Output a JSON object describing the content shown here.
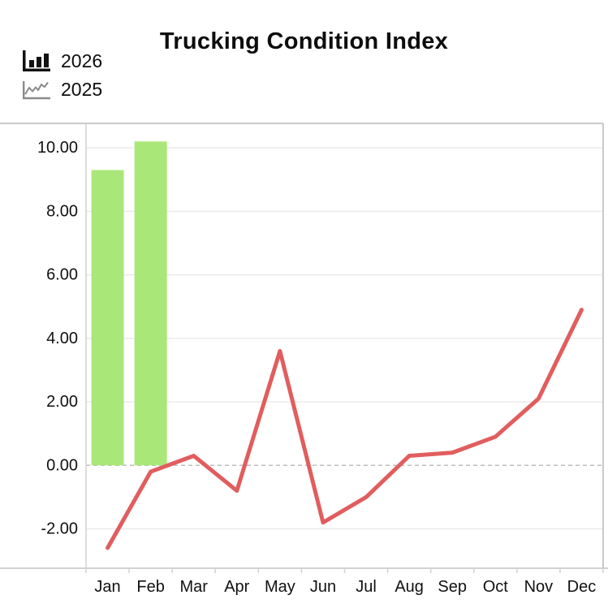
{
  "header": {
    "title": "Trucking Condition Index"
  },
  "legend": [
    {
      "label": "2026",
      "icon": "bar-chart-icon",
      "series_type": "bar"
    },
    {
      "label": "2025",
      "icon": "line-chart-icon",
      "series_type": "line"
    }
  ],
  "chart_data": {
    "type": "combo",
    "title": "Trucking Condition Index",
    "categories": [
      "Jan",
      "Feb",
      "Mar",
      "Apr",
      "May",
      "Jun",
      "Jul",
      "Aug",
      "Sep",
      "Oct",
      "Nov",
      "Dec"
    ],
    "series": [
      {
        "name": "2026",
        "type": "bar",
        "color": "#a9e878",
        "values": [
          9.3,
          10.2,
          null,
          null,
          null,
          null,
          null,
          null,
          null,
          null,
          null,
          null
        ]
      },
      {
        "name": "2025",
        "type": "line",
        "color": "#e15d5e",
        "values": [
          -2.6,
          -0.2,
          0.3,
          -0.8,
          3.6,
          -1.8,
          -1.0,
          0.3,
          0.4,
          0.9,
          2.1,
          4.9
        ]
      }
    ],
    "xlabel": "",
    "ylabel": "",
    "ylim": [
      -3.24,
      10.77
    ],
    "yticks": [
      10,
      8,
      6,
      4,
      2,
      0,
      -2
    ],
    "ytick_labels": [
      "10.00",
      "8.00",
      "6.00",
      "4.00",
      "2.00",
      "0.00",
      "-2.00"
    ],
    "grid": true,
    "zero_line_style": "dashed",
    "legend_position": "top-left"
  },
  "colors": {
    "bar_fill": "#a9e878",
    "line_stroke": "#e15d5e",
    "gridline": "#ebebeb",
    "zero_line": "#bdbdbd",
    "border": "#c9c9c9",
    "axis_line": "#d2d2d2",
    "text": "#111111",
    "legend_bar_icon": "#111111",
    "legend_line_icon": "#8a8a8a"
  }
}
